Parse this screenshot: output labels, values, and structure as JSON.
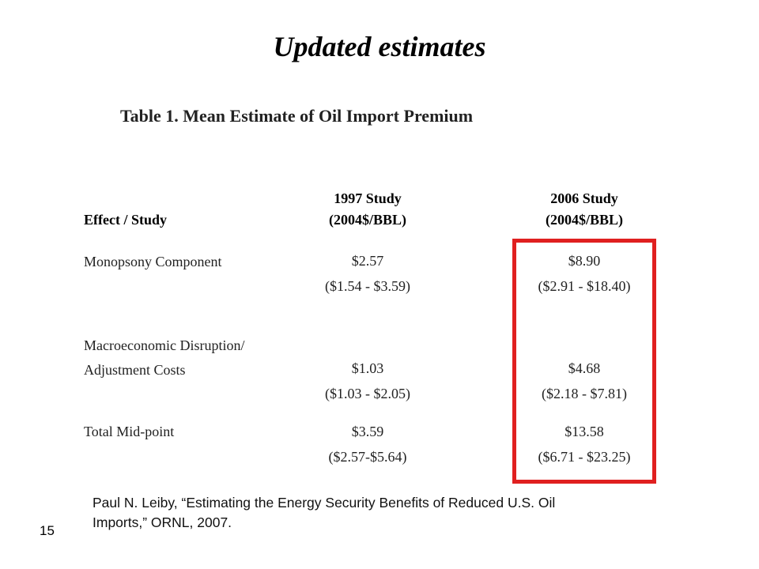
{
  "slide": {
    "title": "Updated estimates",
    "number": "15"
  },
  "table": {
    "caption": "Table 1.  Mean Estimate of Oil Import Premium",
    "header": {
      "effect": "Effect / Study",
      "col1_line1": "1997 Study",
      "col1_line2": "(2004$/BBL)",
      "col2_line1": "2006 Study",
      "col2_line2": "(2004$/BBL)"
    },
    "rows": [
      {
        "label_line1": "Monopsony Component",
        "label_line2": "",
        "c1_mean": "$2.57",
        "c1_range": "($1.54 - $3.59)",
        "c2_mean": "$8.90",
        "c2_range": "($2.91 - $18.40)"
      },
      {
        "label_line1": "Macroeconomic Disruption/",
        "label_line2": "Adjustment Costs",
        "c1_mean": "$1.03",
        "c1_range": "($1.03 - $2.05)",
        "c2_mean": "$4.68",
        "c2_range": "($2.18 - $7.81)"
      },
      {
        "label_line1": "Total Mid-point",
        "label_line2": "",
        "c1_mean": "$3.59",
        "c1_range": "($2.57-$5.64)",
        "c2_mean": "$13.58",
        "c2_range": "($6.71 - $23.25)"
      }
    ]
  },
  "citation": {
    "line1": "Paul N. Leiby, “Estimating the Energy Security Benefits of Reduced U.S. Oil",
    "line2": "Imports,” ORNL, 2007."
  },
  "highlight_color": "#e02020"
}
